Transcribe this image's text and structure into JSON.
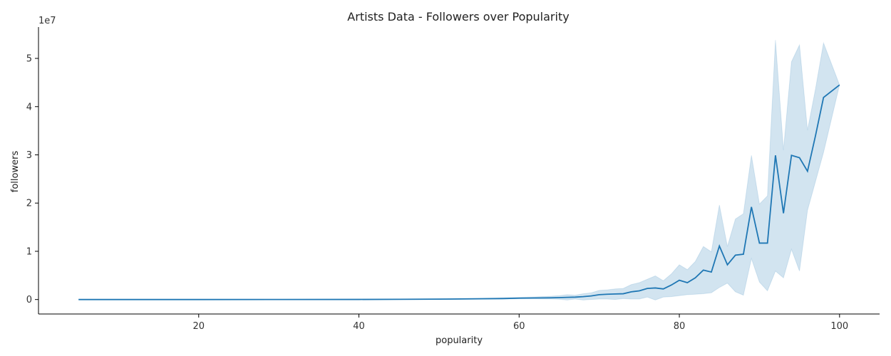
{
  "chart_data": {
    "type": "line",
    "title": "Artists Data - Followers over Popularity",
    "xlabel": "popularity",
    "ylabel": "followers",
    "y_offset_label": "1e7",
    "xlim": [
      0,
      105
    ],
    "ylim": [
      -3000000,
      56500000
    ],
    "xticks": [
      20,
      40,
      60,
      80,
      100
    ],
    "yticks": [
      0,
      10000000,
      20000000,
      30000000,
      40000000,
      50000000
    ],
    "ytick_labels": [
      "0",
      "1",
      "2",
      "3",
      "4",
      "5"
    ],
    "grid": false,
    "line_color": "#1f77b4",
    "band_color": "#1f77b4",
    "series": [
      {
        "x": [
          5,
          10,
          20,
          30,
          40,
          45,
          50,
          55,
          58,
          60,
          62,
          64,
          65,
          66,
          67,
          68,
          69,
          70,
          71,
          72,
          73,
          74,
          75,
          76,
          77,
          78,
          79,
          80,
          81,
          82,
          83,
          84,
          85,
          86,
          87,
          88,
          89,
          90,
          91,
          92,
          93,
          94,
          95,
          96,
          97,
          98,
          100
        ],
        "y": [
          0,
          0,
          0,
          5000,
          20000,
          40000,
          80000,
          150000,
          200000,
          280000,
          320000,
          360000,
          400000,
          450000,
          500000,
          600000,
          750000,
          1000000,
          1100000,
          1150000,
          1200000,
          1600000,
          1800000,
          2300000,
          2400000,
          2200000,
          3000000,
          4000000,
          3500000,
          4500000,
          6100000,
          5700000,
          11100000,
          7200000,
          9200000,
          9400000,
          19200000,
          11700000,
          11700000,
          29900000,
          17900000,
          29900000,
          29400000,
          26600000,
          34000000,
          41900000,
          44500000
        ],
        "lower": [
          0,
          0,
          0,
          0,
          0,
          10000,
          30000,
          70000,
          100000,
          150000,
          150000,
          100000,
          50000,
          -100000,
          100000,
          -100000,
          0,
          100000,
          100000,
          0,
          200000,
          100000,
          100000,
          500000,
          -100000,
          500000,
          600000,
          800000,
          1000000,
          1100000,
          1200000,
          1400000,
          2500000,
          3400000,
          1600000,
          900000,
          8500000,
          3600000,
          1800000,
          5900000,
          4500000,
          10400000,
          5900000,
          18500000,
          24500000,
          30500000,
          44500000
        ],
        "upper": [
          0,
          0,
          0,
          10000,
          40000,
          80000,
          150000,
          250000,
          350000,
          450000,
          550000,
          700000,
          800000,
          1000000,
          900000,
          1200000,
          1400000,
          1900000,
          2000000,
          2200000,
          2300000,
          3100000,
          3500000,
          4200000,
          4900000,
          3900000,
          5300000,
          7200000,
          6200000,
          7900000,
          11000000,
          9900000,
          19600000,
          11000000,
          16700000,
          17800000,
          29900000,
          19800000,
          21500000,
          53800000,
          31000000,
          49300000,
          52800000,
          35100000,
          43700000,
          53200000,
          44500000
        ]
      }
    ]
  }
}
